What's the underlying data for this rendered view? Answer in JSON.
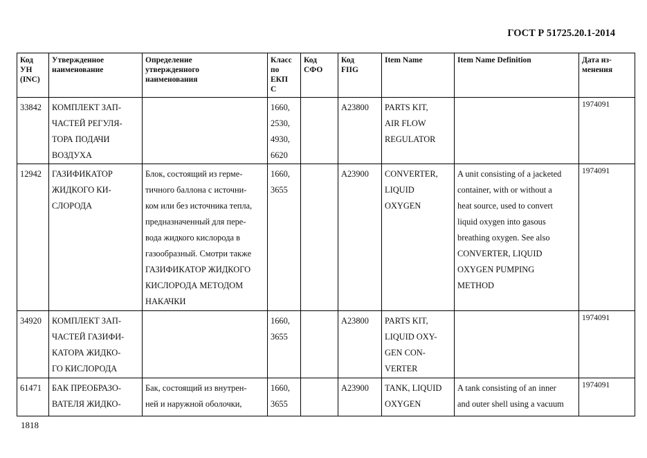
{
  "header": {
    "standard": "ГОСТ Р 51725.20.1-2014"
  },
  "footer": {
    "page_number": "1818"
  },
  "table": {
    "columns": [
      [
        "Код",
        "УН",
        "(INC)"
      ],
      [
        "Утвержденное",
        "наименование"
      ],
      [
        "Определение",
        "утвержденного",
        "наименования"
      ],
      [
        "Класс",
        "по",
        "ЕКП",
        "С"
      ],
      [
        "Код",
        "СФО"
      ],
      [
        "Код",
        "FIIG"
      ],
      [
        "Item Name"
      ],
      [
        "Item Name Definition"
      ],
      [
        "Дата из-",
        "менения"
      ]
    ],
    "rows": [
      {
        "cells": [
          [
            "33842"
          ],
          [
            "КОМПЛЕКТ ЗАП-",
            "ЧАСТЕЙ РЕГУЛЯ-",
            "ТОРА ПОДАЧИ",
            "ВОЗДУХА"
          ],
          [],
          [
            "1660,",
            "2530,",
            "4930,",
            "6620"
          ],
          [],
          [
            "A23800"
          ],
          [
            "PARTS KIT,",
            "AIR FLOW",
            "REGULATOR"
          ],
          [],
          [
            "1974091"
          ]
        ]
      },
      {
        "cells": [
          [
            "12942"
          ],
          [
            "ГАЗИФИКАТОР",
            "ЖИДКОГО КИ-",
            "СЛОРОДА"
          ],
          [
            "Блок, состоящий из герме-",
            "тичного баллона с источни-",
            "ком или без источника тепла,",
            "предназначенный для пере-",
            "вода жидкого кислорода в",
            "газообразный. Смотри также",
            "ГАЗИФИКАТОР ЖИДКОГО",
            "КИСЛОРОДА МЕТОДОМ",
            "НАКАЧКИ"
          ],
          [
            "1660,",
            "3655"
          ],
          [],
          [
            "A23900"
          ],
          [
            "CONVERTER,",
            "LIQUID",
            "OXYGEN"
          ],
          [
            "A unit consisting of a jacketed",
            "container, with or without a",
            "heat source, used to convert",
            "liquid oxygen into gasous",
            "breathing oxygen.  See also",
            "CONVERTER, LIQUID",
            "OXYGEN PUMPING",
            "METHOD"
          ],
          [
            "1974091"
          ]
        ]
      },
      {
        "cells": [
          [
            "34920"
          ],
          [
            "КОМПЛЕКТ ЗАП-",
            "ЧАСТЕЙ ГАЗИФИ-",
            "КАТОРА ЖИДКО-",
            "ГО КИСЛОРОДА"
          ],
          [],
          [
            "1660,",
            "3655"
          ],
          [],
          [
            "A23800"
          ],
          [
            "PARTS KIT,",
            "LIQUID OXY-",
            "GEN CON-",
            "VERTER"
          ],
          [],
          [
            "1974091"
          ]
        ]
      },
      {
        "cells": [
          [
            "61471"
          ],
          [
            "БАК ПРЕОБРАЗО-",
            "ВАТЕЛЯ ЖИДКО-"
          ],
          [
            "Бак, состоящий из внутрен-",
            "ней и наружной оболочки,"
          ],
          [
            "1660,",
            "3655"
          ],
          [],
          [
            "A23900"
          ],
          [
            "TANK, LIQUID",
            "OXYGEN"
          ],
          [
            "A tank consisting of an inner",
            "and outer shell using a vacuum"
          ],
          [
            "1974091"
          ]
        ]
      }
    ]
  }
}
